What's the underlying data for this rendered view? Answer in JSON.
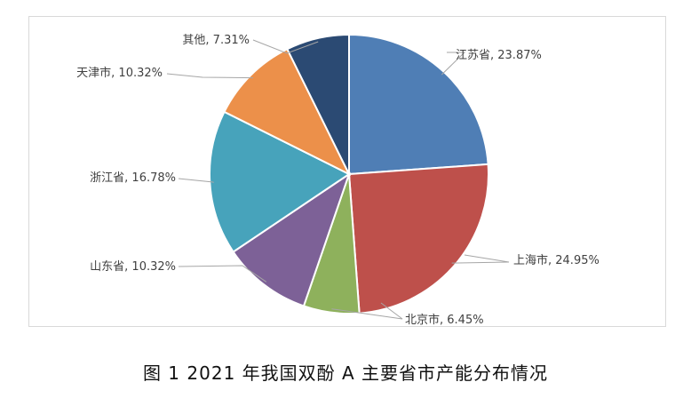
{
  "caption": "图 1  2021 年我国双酚 A 主要省市产能分布情况",
  "chart_data": {
    "type": "pie",
    "title": "",
    "slices": [
      {
        "name": "江苏省",
        "value": 23.87,
        "label": "江苏省, 23.87%",
        "color": "#4f7eb5"
      },
      {
        "name": "上海市",
        "value": 24.95,
        "label": "上海市, 24.95%",
        "color": "#be504b"
      },
      {
        "name": "北京市",
        "value": 6.45,
        "label": "北京市, 6.45%",
        "color": "#8eb15c"
      },
      {
        "name": "山东省",
        "value": 10.32,
        "label": "山东省, 10.32%",
        "color": "#7d6197"
      },
      {
        "name": "浙江省",
        "value": 16.78,
        "label": "浙江省, 16.78%",
        "color": "#47a3bb"
      },
      {
        "name": "天津市",
        "value": 10.32,
        "label": "天津市, 10.32%",
        "color": "#ec904a"
      },
      {
        "name": "其他",
        "value": 7.31,
        "label": "其他, 7.31%",
        "color": "#2b4a73"
      }
    ]
  }
}
